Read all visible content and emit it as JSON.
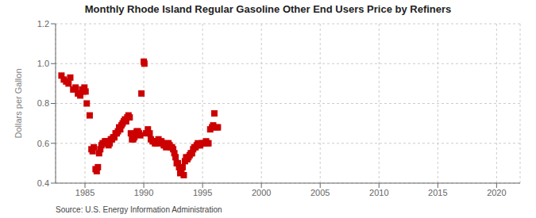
{
  "chart_data": {
    "type": "scatter",
    "title": "Monthly Rhode Island Regular Gasoline Other End Users Price by Refiners",
    "y_label": "Dollars per Gallon",
    "annotations": [
      "Source: U.S. Energy Information Administration"
    ],
    "color": "#cc0000",
    "marker": "square",
    "grid": true,
    "xlim": [
      1982.5,
      2022
    ],
    "ylim": [
      0.4,
      1.2
    ],
    "xticks": [
      1985,
      1990,
      1995,
      2000,
      2005,
      2010,
      2015,
      2020
    ],
    "yticks": [
      0.4,
      0.6,
      0.8,
      {
        "value": 1.0,
        "label": "1.0"
      },
      1.2
    ],
    "x": [
      1983.0,
      1983.2,
      1983.4,
      1983.6,
      1983.75,
      1984.0,
      1984.2,
      1984.4,
      1984.6,
      1984.75,
      1984.85,
      1984.95,
      1985.05,
      1985.15,
      1985.4,
      1985.55,
      1985.65,
      1985.75,
      1985.9,
      1986.0,
      1986.1,
      1986.2,
      1986.3,
      1986.4,
      1986.5,
      1986.6,
      1986.7,
      1986.8,
      1986.9,
      1987.0,
      1987.1,
      1987.2,
      1987.3,
      1987.4,
      1987.5,
      1987.6,
      1987.7,
      1987.8,
      1987.9,
      1988.0,
      1988.1,
      1988.2,
      1988.3,
      1988.4,
      1988.5,
      1988.6,
      1988.7,
      1988.8,
      1988.9,
      1989.0,
      1989.1,
      1989.2,
      1989.3,
      1989.4,
      1989.5,
      1989.6,
      1989.7,
      1989.8,
      1990.0,
      1990.05,
      1990.2,
      1990.35,
      1990.5,
      1990.6,
      1990.75,
      1990.85,
      1990.95,
      1991.05,
      1991.15,
      1991.25,
      1991.35,
      1991.5,
      1991.6,
      1991.7,
      1991.8,
      1991.9,
      1992.0,
      1992.1,
      1992.2,
      1992.3,
      1992.4,
      1992.5,
      1992.6,
      1992.7,
      1992.8,
      1992.9,
      1993.0,
      1993.1,
      1993.2,
      1993.3,
      1993.4,
      1993.5,
      1993.6,
      1993.7,
      1993.8,
      1993.9,
      1994.0,
      1994.1,
      1994.2,
      1994.3,
      1994.4,
      1994.5,
      1994.6,
      1994.7,
      1994.8,
      1994.9,
      1995.0,
      1995.1,
      1995.2,
      1995.3,
      1995.4,
      1995.5,
      1995.65,
      1995.8,
      1995.9,
      1996.0,
      1996.2,
      1996.3
    ],
    "values": [
      0.94,
      0.92,
      0.91,
      0.9,
      0.93,
      0.87,
      0.88,
      0.85,
      0.84,
      0.87,
      0.86,
      0.88,
      0.86,
      0.8,
      0.74,
      0.57,
      0.56,
      0.58,
      0.47,
      0.46,
      0.48,
      0.55,
      0.57,
      0.59,
      0.6,
      0.6,
      0.61,
      0.61,
      0.6,
      0.59,
      0.6,
      0.62,
      0.62,
      0.63,
      0.63,
      0.65,
      0.65,
      0.66,
      0.68,
      0.67,
      0.69,
      0.7,
      0.71,
      0.72,
      0.71,
      0.73,
      0.74,
      0.73,
      0.65,
      0.62,
      0.62,
      0.63,
      0.65,
      0.66,
      0.66,
      0.65,
      0.64,
      0.85,
      1.01,
      1.0,
      0.65,
      0.67,
      0.65,
      0.62,
      0.61,
      0.61,
      0.6,
      0.6,
      0.6,
      0.62,
      0.61,
      0.61,
      0.6,
      0.59,
      0.59,
      0.58,
      0.6,
      0.6,
      0.59,
      0.58,
      0.58,
      0.57,
      0.55,
      0.53,
      0.5,
      0.5,
      0.48,
      0.45,
      0.46,
      0.48,
      0.44,
      0.51,
      0.53,
      0.52,
      0.53,
      0.54,
      0.55,
      0.55,
      0.57,
      0.58,
      0.58,
      0.59,
      0.6,
      0.59,
      0.59,
      0.6,
      0.6,
      0.6,
      0.6,
      0.61,
      0.6,
      0.6,
      0.67,
      0.68,
      0.69,
      0.75,
      0.68,
      0.68
    ]
  }
}
